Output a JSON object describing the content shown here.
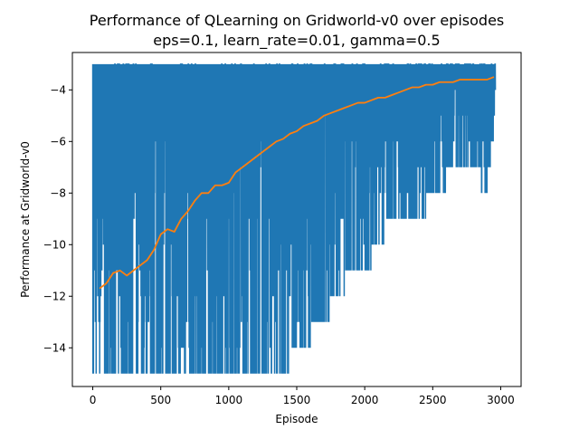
{
  "chart_data": {
    "type": "line",
    "title": "Performance of QLearning on Gridworld-v0 over episodes",
    "subtitle": "eps=0.1, learn_rate=0.01, gamma=0.5",
    "xlabel": "Episode",
    "ylabel": "Performance at Gridworld-v0",
    "xlim": [
      -150,
      3150
    ],
    "ylim": [
      -15.5,
      -2.55
    ],
    "xticks": [
      0,
      500,
      1000,
      1500,
      2000,
      2500,
      3000
    ],
    "xtick_labels": [
      "0",
      "500",
      "1000",
      "1500",
      "2000",
      "2500",
      "3000"
    ],
    "yticks": [
      -14,
      -12,
      -10,
      -8,
      -6,
      -4
    ],
    "ytick_labels": [
      "−14",
      "−12",
      "−10",
      "−8",
      "−6",
      "−4"
    ],
    "grid": false,
    "legend": null,
    "series": [
      {
        "style": "raw per-episode performance (dense oscillation between the ceiling and a falling floor)",
        "color": "#1f77b4",
        "envelope": {
          "x": [
            0,
            250,
            500,
            750,
            900,
            1000,
            1100,
            1250,
            1400,
            1500,
            1600,
            1750,
            1900,
            2000,
            2100,
            2200,
            2300,
            2400,
            2500,
            2600,
            2700,
            2800,
            2900,
            2960
          ],
          "upper": [
            -3,
            -3,
            -3,
            -3,
            -3,
            -3,
            -3,
            -3,
            -3,
            -3,
            -3,
            -3,
            -3,
            -3,
            -3,
            -3,
            -3,
            -3,
            -3,
            -3,
            -3,
            -3,
            -3,
            -3
          ],
          "lower": [
            -15,
            -15,
            -15,
            -15,
            -15,
            -15,
            -15,
            -14.5,
            -15,
            -14,
            -13.5,
            -12.5,
            -11,
            -11,
            -10,
            -9,
            -9,
            -9,
            -8,
            -7.5,
            -7,
            -7,
            -8,
            -5
          ]
        }
      },
      {
        "style": "moving average",
        "color": "#ff7f0e",
        "x": [
          50,
          100,
          150,
          200,
          250,
          300,
          350,
          400,
          450,
          500,
          550,
          600,
          650,
          700,
          750,
          800,
          850,
          900,
          950,
          1000,
          1050,
          1100,
          1150,
          1200,
          1250,
          1300,
          1350,
          1400,
          1450,
          1500,
          1550,
          1600,
          1650,
          1700,
          1750,
          1800,
          1850,
          1900,
          1950,
          2000,
          2050,
          2100,
          2150,
          2200,
          2250,
          2300,
          2350,
          2400,
          2450,
          2500,
          2550,
          2600,
          2650,
          2700,
          2750,
          2800,
          2850,
          2900,
          2950
        ],
        "y": [
          -11.7,
          -11.5,
          -11.1,
          -11.0,
          -11.2,
          -11.0,
          -10.8,
          -10.6,
          -10.2,
          -9.6,
          -9.4,
          -9.5,
          -9.0,
          -8.7,
          -8.3,
          -8.0,
          -8.0,
          -7.7,
          -7.7,
          -7.6,
          -7.2,
          -7.0,
          -6.8,
          -6.6,
          -6.4,
          -6.2,
          -6.0,
          -5.9,
          -5.7,
          -5.6,
          -5.4,
          -5.3,
          -5.2,
          -5.0,
          -4.9,
          -4.8,
          -4.7,
          -4.6,
          -4.5,
          -4.5,
          -4.4,
          -4.3,
          -4.3,
          -4.2,
          -4.1,
          -4.0,
          -3.9,
          -3.9,
          -3.8,
          -3.8,
          -3.7,
          -3.7,
          -3.7,
          -3.6,
          -3.6,
          -3.6,
          -3.6,
          -3.6,
          -3.5
        ]
      }
    ]
  }
}
